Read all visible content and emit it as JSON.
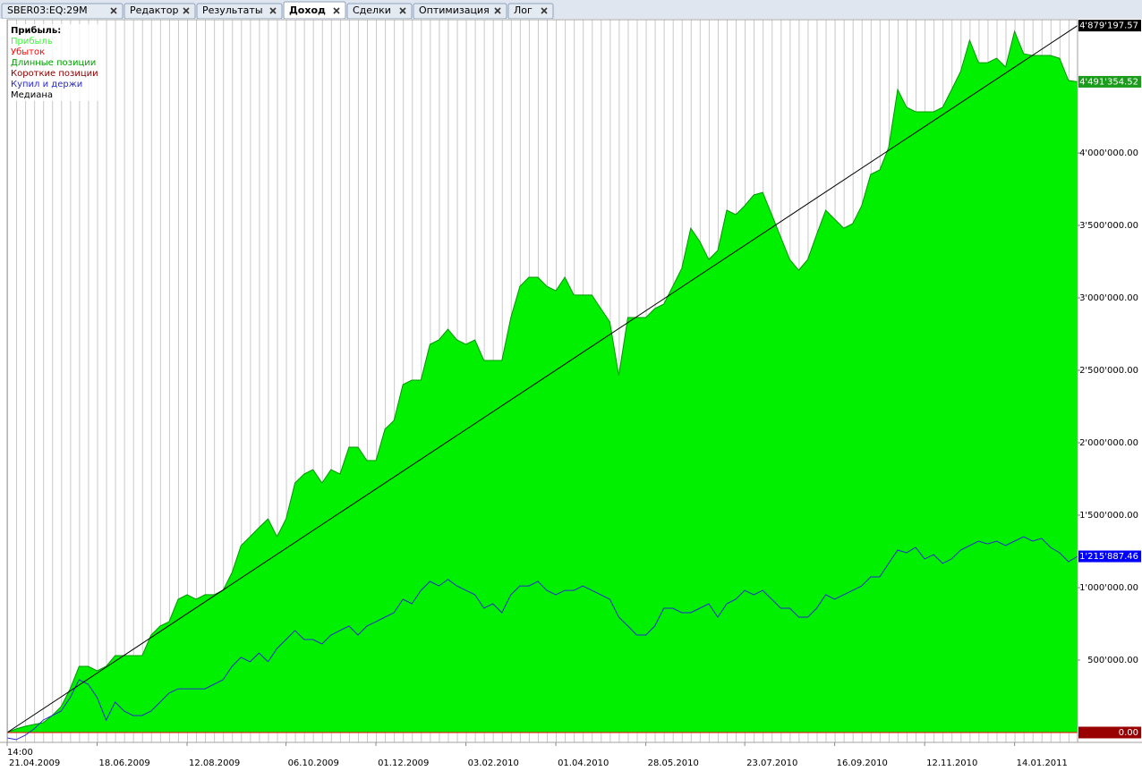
{
  "tabs": [
    {
      "label": "SBER03:EQ:29M",
      "active": false
    },
    {
      "label": "Редактор",
      "active": false
    },
    {
      "label": "Результаты",
      "active": false
    },
    {
      "label": "Доход",
      "active": true
    },
    {
      "label": "Сделки",
      "active": false
    },
    {
      "label": "Оптимизация",
      "active": false
    },
    {
      "label": "Лог",
      "active": false
    }
  ],
  "chart_data": {
    "type": "area",
    "legend_title": "Прибыль:",
    "legend": "upper left",
    "x_time_label": "14:00",
    "xlim": [
      0,
      119
    ],
    "ylim": [
      -68000,
      4920000
    ],
    "xticks": [
      {
        "value": 0,
        "label": "21.04.2009"
      },
      {
        "value": 10,
        "label": "18.06.2009"
      },
      {
        "value": 20,
        "label": "12.08.2009"
      },
      {
        "value": 31,
        "label": "06.10.2009"
      },
      {
        "value": 41,
        "label": "01.12.2009"
      },
      {
        "value": 51,
        "label": "03.02.2010"
      },
      {
        "value": 61,
        "label": "01.04.2010"
      },
      {
        "value": 71,
        "label": "28.05.2010"
      },
      {
        "value": 82,
        "label": "23.07.2010"
      },
      {
        "value": 92,
        "label": "16.09.2010"
      },
      {
        "value": 102,
        "label": "12.11.2010"
      },
      {
        "value": 112,
        "label": "14.01.2011"
      }
    ],
    "yticks": [
      {
        "value": 500000,
        "label": "500'000.00"
      },
      {
        "value": 1000000,
        "label": "1'000'000.00"
      },
      {
        "value": 1500000,
        "label": "1'500'000.00"
      },
      {
        "value": 2000000,
        "label": "2'000'000.00"
      },
      {
        "value": 2500000,
        "label": "2'500'000.00"
      },
      {
        "value": 3000000,
        "label": "3'000'000.00"
      },
      {
        "value": 3500000,
        "label": "3'500'000.00"
      },
      {
        "value": 4000000,
        "label": "4'000'000.00"
      }
    ],
    "x": [
      0,
      1,
      2,
      3,
      4,
      5,
      6,
      7,
      8,
      9,
      10,
      11,
      12,
      13,
      14,
      15,
      16,
      17,
      18,
      19,
      20,
      21,
      22,
      23,
      24,
      25,
      26,
      27,
      28,
      29,
      30,
      31,
      32,
      33,
      34,
      35,
      36,
      37,
      38,
      39,
      40,
      41,
      42,
      43,
      44,
      45,
      46,
      47,
      48,
      49,
      50,
      51,
      52,
      53,
      54,
      55,
      56,
      57,
      58,
      59,
      60,
      61,
      62,
      63,
      64,
      65,
      66,
      67,
      68,
      69,
      70,
      71,
      72,
      73,
      74,
      75,
      76,
      77,
      78,
      79,
      80,
      81,
      82,
      83,
      84,
      85,
      86,
      87,
      88,
      89,
      90,
      91,
      92,
      93,
      94,
      95,
      96,
      97,
      98,
      99,
      100,
      101,
      102,
      103,
      104,
      105,
      106,
      107,
      108,
      109,
      110,
      111,
      112,
      113,
      114,
      115,
      116,
      117,
      118,
      119
    ],
    "series": [
      {
        "name": "Прибыль",
        "color": "#33ff33",
        "fill": "#00f000",
        "edge": "#009900",
        "label_color": "#1c9c1c",
        "kind": "area",
        "values": [
          0,
          25000,
          43000,
          56000,
          68000,
          117000,
          179000,
          302000,
          457000,
          457000,
          426000,
          457000,
          531000,
          531000,
          531000,
          531000,
          673000,
          735000,
          765000,
          920000,
          951000,
          920000,
          951000,
          951000,
          981000,
          1105000,
          1290000,
          1352000,
          1414000,
          1475000,
          1352000,
          1475000,
          1722000,
          1784000,
          1815000,
          1722000,
          1815000,
          1784000,
          1969000,
          1969000,
          1877000,
          1877000,
          2093000,
          2154000,
          2401000,
          2432000,
          2432000,
          2679000,
          2710000,
          2784000,
          2710000,
          2679000,
          2710000,
          2568000,
          2568000,
          2568000,
          2864000,
          3080000,
          3142000,
          3142000,
          3080000,
          3049000,
          3142000,
          3019000,
          3019000,
          3019000,
          2926000,
          2833000,
          2463000,
          2864000,
          2864000,
          2864000,
          2926000,
          2957000,
          3080000,
          3204000,
          3481000,
          3389000,
          3265000,
          3327000,
          3605000,
          3574000,
          3636000,
          3710000,
          3728000,
          3574000,
          3420000,
          3265000,
          3191000,
          3265000,
          3438000,
          3605000,
          3543000,
          3481000,
          3512000,
          3636000,
          3852000,
          3883000,
          4037000,
          4438000,
          4315000,
          4284000,
          4284000,
          4284000,
          4315000,
          4438000,
          4562000,
          4778000,
          4623000,
          4623000,
          4654000,
          4593000,
          4840000,
          4685000,
          4673000,
          4673000,
          4673000,
          4654000,
          4500000,
          4491354.52
        ],
        "value_labels": [
          null,
          null,
          null,
          null,
          null,
          null,
          null,
          null,
          null,
          null,
          null,
          null,
          null,
          null,
          null,
          null,
          null,
          null,
          null,
          null,
          null,
          null,
          null,
          null,
          null,
          null,
          null,
          null,
          null,
          null,
          null,
          null,
          null,
          null,
          null,
          null,
          null,
          null,
          null,
          null,
          null,
          null,
          null,
          null,
          null,
          null,
          null,
          null,
          null,
          null,
          null,
          null,
          null,
          null,
          null,
          null,
          null,
          null,
          null,
          null,
          null,
          null,
          null,
          null,
          null,
          null,
          null,
          null,
          null,
          null,
          null,
          null,
          null,
          null,
          null,
          null,
          null,
          null,
          null,
          null,
          null,
          null,
          null,
          null,
          null,
          null,
          null,
          null,
          null,
          null,
          null,
          null,
          null,
          null,
          null,
          null,
          null,
          null,
          null,
          null,
          null,
          null,
          null,
          null,
          null,
          null,
          null,
          null,
          null,
          null,
          null,
          null,
          null,
          null,
          null,
          null,
          null,
          null,
          null,
          "4'491'354.52"
        ]
      },
      {
        "name": "Убыток",
        "color": "#ff0000",
        "label_color": "#990000",
        "kind": "line",
        "x": [
          0,
          119
        ],
        "values": [
          0,
          0
        ],
        "value_labels": [
          null,
          "0.00"
        ]
      },
      {
        "name": "Длинные позиции",
        "color": "#00a000",
        "kind": "line",
        "x": [],
        "values": []
      },
      {
        "name": "Короткие позиции",
        "color": "#8b0000",
        "kind": "line",
        "x": [],
        "values": []
      },
      {
        "name": "Купил и держи",
        "color": "#2a2acc",
        "label_color": "#0000ff",
        "kind": "line",
        "values": [
          -37000,
          -49000,
          -19000,
          25000,
          86000,
          117000,
          148000,
          241000,
          364000,
          333000,
          241000,
          86000,
          210000,
          148000,
          117000,
          117000,
          148000,
          210000,
          272000,
          302000,
          302000,
          302000,
          302000,
          333000,
          364000,
          457000,
          519000,
          488000,
          549000,
          488000,
          580000,
          642000,
          704000,
          642000,
          642000,
          611000,
          673000,
          704000,
          735000,
          673000,
          735000,
          765000,
          796000,
          827000,
          920000,
          889000,
          981000,
          1043000,
          1012000,
          1056000,
          1012000,
          981000,
          951000,
          858000,
          889000,
          827000,
          951000,
          1012000,
          1012000,
          1043000,
          981000,
          951000,
          981000,
          981000,
          1012000,
          981000,
          951000,
          920000,
          796000,
          735000,
          673000,
          673000,
          735000,
          858000,
          858000,
          827000,
          827000,
          858000,
          889000,
          796000,
          889000,
          920000,
          981000,
          951000,
          981000,
          920000,
          858000,
          858000,
          796000,
          796000,
          858000,
          951000,
          920000,
          951000,
          981000,
          1012000,
          1074000,
          1074000,
          1167000,
          1259000,
          1241000,
          1278000,
          1198000,
          1228000,
          1167000,
          1198000,
          1259000,
          1290000,
          1321000,
          1302000,
          1321000,
          1290000,
          1321000,
          1352000,
          1321000,
          1340000,
          1278000,
          1241000,
          1179000,
          1215887.46
        ],
        "value_labels": [
          null,
          null,
          null,
          null,
          null,
          null,
          null,
          null,
          null,
          null,
          null,
          null,
          null,
          null,
          null,
          null,
          null,
          null,
          null,
          null,
          null,
          null,
          null,
          null,
          null,
          null,
          null,
          null,
          null,
          null,
          null,
          null,
          null,
          null,
          null,
          null,
          null,
          null,
          null,
          null,
          null,
          null,
          null,
          null,
          null,
          null,
          null,
          null,
          null,
          null,
          null,
          null,
          null,
          null,
          null,
          null,
          null,
          null,
          null,
          null,
          null,
          null,
          null,
          null,
          null,
          null,
          null,
          null,
          null,
          null,
          null,
          null,
          null,
          null,
          null,
          null,
          null,
          null,
          null,
          null,
          null,
          null,
          null,
          null,
          null,
          null,
          null,
          null,
          null,
          null,
          null,
          null,
          null,
          null,
          null,
          null,
          null,
          null,
          null,
          null,
          null,
          null,
          null,
          null,
          null,
          null,
          null,
          null,
          null,
          null,
          null,
          null,
          null,
          null,
          null,
          null,
          null,
          null,
          null,
          "1'215'887.46"
        ]
      },
      {
        "name": "Медиана",
        "color": "#000000",
        "label_color": "#000000",
        "kind": "line",
        "x": [
          0,
          119
        ],
        "values": [
          0,
          4879197.57
        ],
        "value_labels": [
          null,
          "4'879'197.57"
        ]
      }
    ]
  }
}
